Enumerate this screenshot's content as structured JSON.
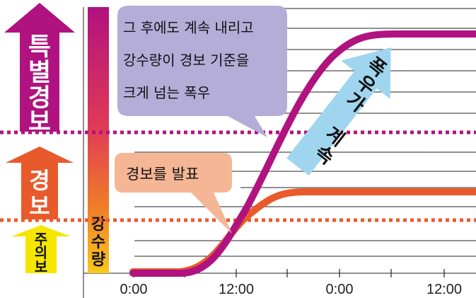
{
  "levels": {
    "special": {
      "label_lines": [
        "특",
        "별",
        "경",
        "보"
      ],
      "color": "#b0127f"
    },
    "warning": {
      "label_lines": [
        "경",
        "보"
      ],
      "color": "#e85a2b"
    },
    "advisory": {
      "label_lines": [
        "주",
        "의",
        "보"
      ],
      "color": "#f5e600"
    }
  },
  "rainfall_bar": {
    "label_lines": [
      "강",
      "수",
      "량"
    ]
  },
  "callouts": {
    "special": {
      "lines": [
        "그 후에도 계속 내리고",
        "강수량이 경보 기준을",
        "크게 넘는 폭우"
      ],
      "color": "#b3add8"
    },
    "warning": {
      "text": "경보를 발표",
      "color": "#f5b696"
    }
  },
  "continue_arrow": {
    "chars": [
      "폭",
      "우",
      "가",
      " ",
      "계",
      "속"
    ],
    "color": "#9fd5ef"
  },
  "x_axis": {
    "ticks": [
      "0:00",
      "12:00",
      "0:00",
      "12:00"
    ]
  },
  "colors": {
    "special_curve": "#b0127f",
    "warning_curve": "#e85a2b",
    "grid": "#222222"
  }
}
